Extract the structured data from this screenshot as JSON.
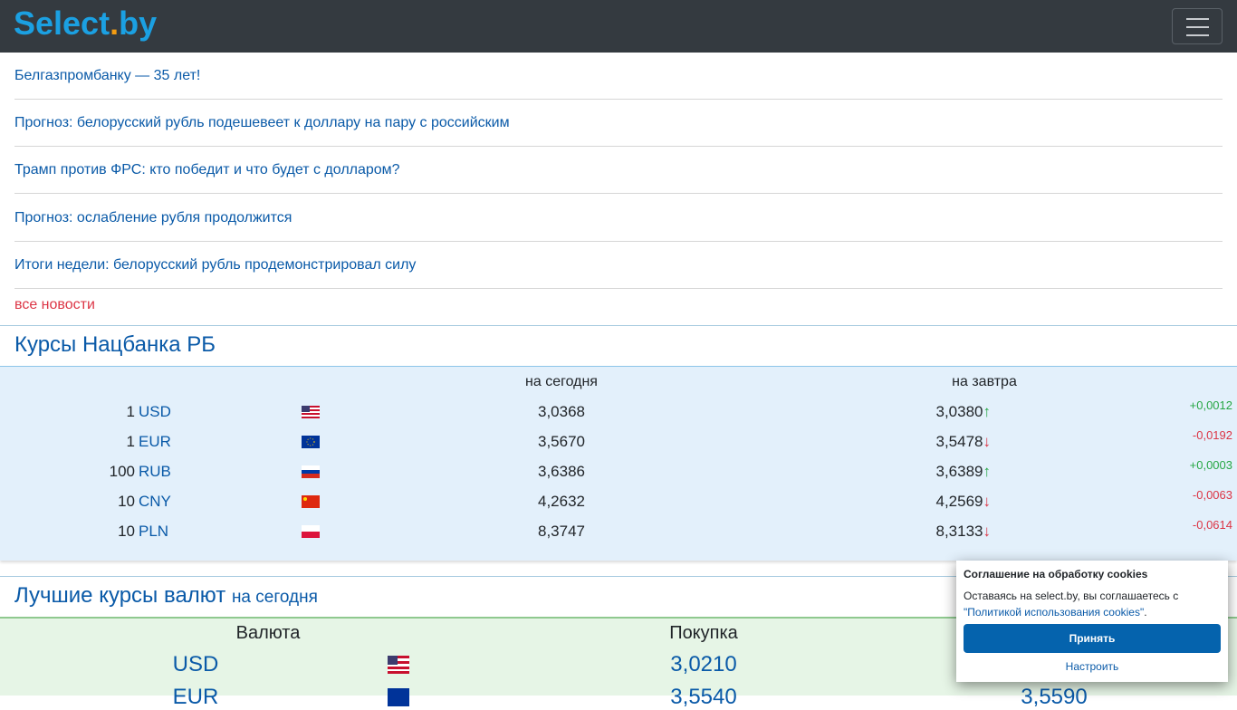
{
  "header": {
    "logo_main": "Select",
    "logo_dot": ".",
    "logo_tld": "by",
    "menu_icon": "hamburger-icon"
  },
  "news": {
    "items": [
      "Белгазпромбанку — 35 лет!",
      "Прогноз: белорусский рубль подешевеет к доллару на пару с российским",
      "Трамп против ФРС: кто победит и что будет с долларом?",
      "Прогноз: ослабление рубля продолжится",
      "Итоги недели: белорусский рубль продемонстрировал силу"
    ],
    "all_label": "все новости"
  },
  "nbrb": {
    "title": "Курсы Нацбанка РБ",
    "col_today": "на сегодня",
    "col_tomorrow": "на завтра",
    "rows": [
      {
        "amount": "1",
        "code": "USD",
        "flag": "us-flag-icon",
        "today": "3,0368",
        "tomorrow": "3,0380",
        "arrow": "↑",
        "change": "+0,0012",
        "dir": "up"
      },
      {
        "amount": "1",
        "code": "EUR",
        "flag": "eu-flag-icon",
        "today": "3,5670",
        "tomorrow": "3,5478",
        "arrow": "↓",
        "change": "-0,0192",
        "dir": "down"
      },
      {
        "amount": "100",
        "code": "RUB",
        "flag": "ru-flag-icon",
        "today": "3,6386",
        "tomorrow": "3,6389",
        "arrow": "↑",
        "change": "+0,0003",
        "dir": "up"
      },
      {
        "amount": "10",
        "code": "CNY",
        "flag": "cn-flag-icon",
        "today": "4,2632",
        "tomorrow": "4,2569",
        "arrow": "↓",
        "change": "-0,0063",
        "dir": "down"
      },
      {
        "amount": "10",
        "code": "PLN",
        "flag": "pl-flag-icon",
        "today": "8,3747",
        "tomorrow": "8,3133",
        "arrow": "↓",
        "change": "-0,0614",
        "dir": "down"
      }
    ]
  },
  "best": {
    "title": "Лучшие курсы валют",
    "subtitle": "на сегодня",
    "col_currency": "Валюта",
    "col_buy": "Покупка",
    "rows": [
      {
        "code": "USD",
        "flag": "us-flag-icon",
        "buy": "3,0210"
      },
      {
        "code": "EUR",
        "flag": "eu-flag-icon",
        "buy": "3,5540",
        "sell": "3,5590"
      }
    ]
  },
  "cookie": {
    "title": "Соглашение на обработку cookies",
    "text": "Оставаясь на select.by, вы соглашаетесь с",
    "link": "\"Политикой использования cookies\"",
    "after_link": ".",
    "accept": "Принять",
    "configure": "Настроить"
  },
  "colors": {
    "header_bg": "#343a40",
    "logo": "#1ba0e2",
    "link": "#0a5aa8",
    "up": "#28a745",
    "down": "#dc3545",
    "accept_bg": "#0563ad"
  }
}
